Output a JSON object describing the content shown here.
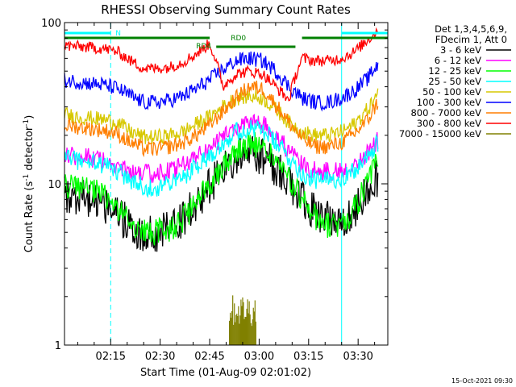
{
  "chart_data": {
    "type": "line",
    "title": "RHESSI Observing Summary Count Rates",
    "xlabel": "Start Time (01-Aug-09 02:01:02)",
    "ylabel_main": "Count Rate (s",
    "ylabel_sup1": "-1",
    "ylabel_mid": " detector",
    "ylabel_sup2": "-1",
    "ylabel_end": ")",
    "yscale": "log",
    "ylim": [
      1,
      100
    ],
    "y_tick_labels": [
      "1",
      "10",
      "100"
    ],
    "xlim_minutes": [
      0,
      98
    ],
    "x_ticks": [
      {
        "label": "02:15",
        "t": 14
      },
      {
        "label": "02:30",
        "t": 29
      },
      {
        "label": "02:45",
        "t": 44
      },
      {
        "label": "03:00",
        "t": 59
      },
      {
        "label": "03:15",
        "t": 74
      },
      {
        "label": "03:30",
        "t": 89
      }
    ],
    "legend_header": [
      "Det 1,3,4,5,6,9,",
      "FDecim 1, Att 0"
    ],
    "x_minutes": [
      0,
      4,
      8,
      12,
      16,
      20,
      24,
      28,
      32,
      36,
      40,
      44,
      48,
      52,
      56,
      60,
      64,
      68,
      72,
      76,
      80,
      84,
      88,
      92,
      95
    ],
    "series": [
      {
        "name": "3 - 6 keV",
        "color": "#000000",
        "noise": 0.1,
        "values": [
          8.5,
          8.2,
          7.9,
          7.5,
          6.5,
          5.4,
          5.0,
          5.0,
          5.3,
          6.2,
          7.5,
          9.5,
          12.0,
          14.5,
          15.5,
          15.0,
          12.5,
          10.0,
          8.0,
          6.5,
          6.0,
          6.0,
          7.0,
          9.0,
          11.0
        ]
      },
      {
        "name": "6 - 12 keV",
        "color": "#ff00ff",
        "noise": 0.05,
        "values": [
          15.0,
          14.8,
          14.5,
          14.0,
          13.0,
          12.0,
          11.5,
          11.5,
          12.0,
          13.0,
          14.5,
          16.5,
          19.5,
          22.5,
          24.0,
          23.5,
          20.0,
          16.0,
          13.0,
          12.0,
          12.0,
          12.0,
          13.0,
          15.5,
          18.5
        ]
      },
      {
        "name": "12 - 25 keV",
        "color": "#00ff00",
        "noise": 0.07,
        "values": [
          9.8,
          9.5,
          9.0,
          8.5,
          7.0,
          5.8,
          5.0,
          5.0,
          5.3,
          6.0,
          7.5,
          10.0,
          13.0,
          16.0,
          17.5,
          17.0,
          14.0,
          10.5,
          8.0,
          6.2,
          5.5,
          5.5,
          7.0,
          10.0,
          14.0
        ]
      },
      {
        "name": "25 - 50 keV",
        "color": "#00ffff",
        "noise": 0.05,
        "values": [
          15.0,
          14.0,
          13.5,
          13.0,
          12.0,
          10.5,
          9.5,
          9.5,
          10.0,
          11.0,
          13.0,
          15.0,
          18.0,
          21.0,
          22.0,
          21.5,
          18.0,
          14.5,
          11.5,
          10.5,
          10.5,
          11.0,
          12.0,
          14.5,
          18.0
        ]
      },
      {
        "name": "50 - 100 keV",
        "color": "#d7c800",
        "noise": 0.04,
        "values": [
          27.0,
          26.0,
          25.5,
          25.0,
          24.0,
          21.0,
          19.5,
          19.5,
          20.0,
          21.0,
          23.5,
          26.0,
          30.0,
          34.0,
          35.0,
          34.0,
          29.0,
          24.0,
          21.0,
          20.0,
          20.0,
          21.0,
          23.5,
          29.0,
          36.0
        ]
      },
      {
        "name": "100 - 300 keV",
        "color": "#0000ff",
        "noise": 0.04,
        "values": [
          44.0,
          43.0,
          42.0,
          41.0,
          39.0,
          35.0,
          32.0,
          32.0,
          33.0,
          35.0,
          39.0,
          44.0,
          51.0,
          58.0,
          60.0,
          58.0,
          50.0,
          40.0,
          34.0,
          32.0,
          32.0,
          34.0,
          38.0,
          45.0,
          55.0
        ]
      },
      {
        "name": "800 - 7000 keV",
        "color": "#ff7f00",
        "noise": 0.04,
        "values": [
          23.0,
          22.5,
          22.0,
          21.5,
          20.5,
          18.0,
          16.5,
          16.5,
          17.0,
          18.0,
          20.0,
          23.0,
          28.0,
          34.0,
          40.0,
          39.0,
          31.0,
          24.0,
          19.0,
          17.0,
          17.0,
          18.0,
          20.5,
          25.0,
          32.0
        ]
      },
      {
        "name": "300 - 800 keV",
        "color": "#ff0000",
        "noise": 0.03,
        "values": [
          72.0,
          71.0,
          70.0,
          69.0,
          66.0,
          58.0,
          52.0,
          52.0,
          53.0,
          57.0,
          64.0,
          74.0,
          40.0,
          48.0,
          50.0,
          48.0,
          40.0,
          33.0,
          60.0,
          58.0,
          58.0,
          60.0,
          66.0,
          78.0,
          90.0
        ]
      },
      {
        "name": "7000 - 15000 keV",
        "color": "#808000",
        "noise": 0,
        "values": []
      }
    ],
    "attenuator_segments": [
      {
        "label": "",
        "t_start": 0,
        "t_end": 44
      },
      {
        "label": "RD0",
        "t_start": 46,
        "t_end": 70
      },
      {
        "label": "",
        "t_start": 72,
        "t_end": 98
      }
    ],
    "annotations": [
      {
        "label": "N",
        "t_start": 0,
        "t_end": 14
      },
      {
        "label": "RD4",
        "t": 45
      },
      {
        "label": "",
        "t_start": 84,
        "t_end": 98
      }
    ],
    "cyan_markers": {
      "solid": [
        0,
        84
      ],
      "dashed": [
        14,
        98
      ]
    },
    "timestamp": "15-Oct-2021 09:30"
  },
  "colors": {
    "background": "#ffffff",
    "axes": "#000000",
    "attenuator": "#008000",
    "night": "#00ffff"
  }
}
